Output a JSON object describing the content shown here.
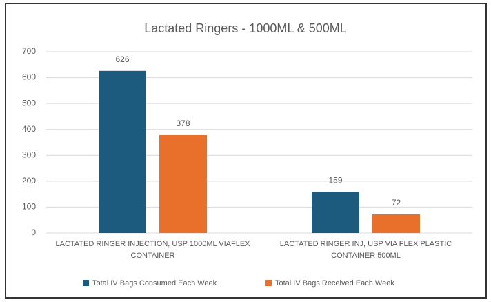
{
  "chart_data": {
    "type": "bar",
    "title": "Lactated Ringers - 1000ML & 500ML",
    "categories": [
      "LACTATED RINGER INJECTION, USP 1000ML VIAFLEX CONTAINER",
      "LACTATED RINGER INJ, USP VIA FLEX PLASTIC CONTAINER 500ML"
    ],
    "series": [
      {
        "name": "Total IV Bags Consumed Each Week",
        "color": "#1d5b7e",
        "values": [
          626,
          159
        ]
      },
      {
        "name": "Total IV Bags Received Each Week",
        "color": "#e8702a",
        "values": [
          378,
          72
        ]
      }
    ],
    "ylim": [
      0,
      700
    ],
    "yticks": [
      0,
      100,
      200,
      300,
      400,
      500,
      600,
      700
    ],
    "grid": true,
    "legend": "bottom"
  }
}
